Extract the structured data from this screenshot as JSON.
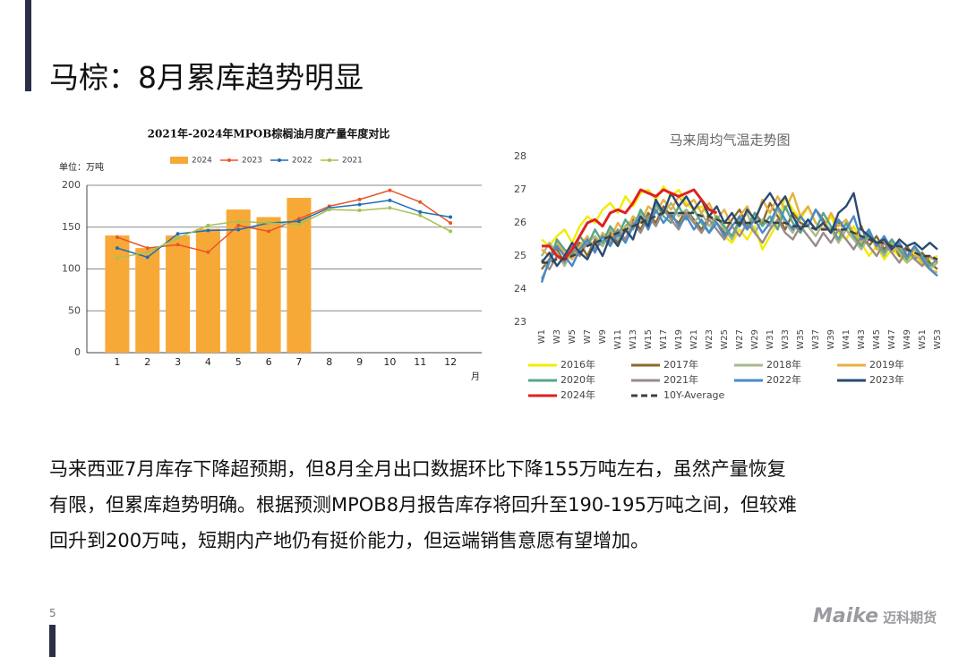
{
  "title": "马棕：8月累库趋势明显",
  "chart_data": [
    {
      "type": "combo",
      "title": "2021年-2024年MPOB棕榈油月度产量年度对比",
      "unit_label": "单位：万吨",
      "x_label": "月",
      "categories": [
        "1",
        "2",
        "3",
        "4",
        "5",
        "6",
        "7",
        "8",
        "9",
        "10",
        "11",
        "12"
      ],
      "series": [
        {
          "name": "2024",
          "type": "bar",
          "color": "#f7a938",
          "values": [
            140,
            125,
            140,
            148,
            171,
            162,
            185,
            null,
            null,
            null,
            null,
            null
          ]
        },
        {
          "name": "2023",
          "type": "line",
          "color": "#e8562a",
          "values": [
            138,
            125,
            129,
            120,
            152,
            145,
            160,
            175,
            183,
            194,
            180,
            155
          ]
        },
        {
          "name": "2022",
          "type": "line",
          "color": "#1f6fb5",
          "values": [
            125,
            114,
            142,
            146,
            147,
            155,
            157,
            173,
            177,
            182,
            168,
            162
          ]
        },
        {
          "name": "2021",
          "type": "line",
          "color": "#a8c050",
          "values": [
            113,
            120,
            137,
            152,
            157,
            155,
            153,
            171,
            170,
            173,
            164,
            145
          ]
        }
      ],
      "ylim": [
        0,
        200
      ],
      "yticks": [
        0,
        50,
        100,
        150,
        200
      ],
      "grid": true
    },
    {
      "type": "line",
      "title": "马来周均气温走势图",
      "categories": [
        "W1",
        null,
        "W3",
        null,
        "W5",
        null,
        "W7",
        null,
        "W9",
        null,
        "W11",
        null,
        "W13",
        null,
        "W15",
        null,
        "W17",
        null,
        "W19",
        null,
        "W21",
        null,
        "W23",
        null,
        "W25",
        null,
        "W27",
        null,
        "W29",
        null,
        "W31",
        null,
        "W33",
        null,
        "W35",
        null,
        "W37",
        null,
        "W39",
        null,
        "W41",
        null,
        "W43",
        null,
        "W45",
        null,
        "W47",
        null,
        "W49",
        null,
        "W51",
        null,
        "W53"
      ],
      "series": [
        {
          "name": "2016年",
          "color": "#f2ec00",
          "dash": false,
          "values": [
            25.5,
            25.3,
            25.6,
            25.8,
            25.4,
            25.9,
            26.2,
            26.0,
            26.4,
            26.6,
            26.3,
            26.8,
            26.5,
            26.9,
            27.0,
            26.7,
            27.1,
            26.8,
            27.0,
            26.6,
            26.4,
            26.5,
            26.2,
            26.0,
            25.6,
            25.4,
            25.8,
            25.5,
            25.9,
            25.2,
            25.6,
            26.0,
            26.8,
            26.4,
            26.1,
            26.5,
            26.0,
            25.8,
            26.2,
            25.7,
            25.5,
            25.9,
            25.4,
            25.0,
            25.3,
            24.9,
            25.2,
            25.0,
            24.8,
            25.1,
            24.7,
            24.9,
            25.0
          ]
        },
        {
          "name": "2017年",
          "color": "#8b6a2a",
          "dash": false,
          "values": [
            24.6,
            24.9,
            25.2,
            24.8,
            25.1,
            25.4,
            25.0,
            25.5,
            25.3,
            25.7,
            25.4,
            25.9,
            26.1,
            25.8,
            26.3,
            26.0,
            26.5,
            26.2,
            26.0,
            26.4,
            26.1,
            25.8,
            26.2,
            26.0,
            25.7,
            26.1,
            26.4,
            25.9,
            26.3,
            26.0,
            26.6,
            26.2,
            25.8,
            26.3,
            26.0,
            25.9,
            26.4,
            26.1,
            25.7,
            26.0,
            25.8,
            25.5,
            25.9,
            25.3,
            25.6,
            25.2,
            25.5,
            25.0,
            25.3,
            24.9,
            25.1,
            24.8,
            24.6
          ]
        },
        {
          "name": "2018年",
          "color": "#a8b88a",
          "dash": false,
          "values": [
            25.0,
            25.4,
            25.1,
            24.7,
            25.2,
            25.0,
            25.4,
            25.6,
            25.3,
            25.8,
            25.5,
            25.9,
            26.0,
            26.3,
            26.1,
            26.5,
            26.3,
            26.6,
            26.2,
            26.4,
            26.0,
            26.3,
            25.9,
            26.2,
            25.8,
            25.5,
            26.0,
            26.3,
            25.7,
            26.1,
            25.9,
            26.4,
            26.0,
            25.7,
            26.2,
            25.9,
            25.6,
            26.0,
            25.8,
            25.4,
            25.8,
            25.5,
            25.2,
            25.6,
            25.3,
            25.0,
            25.4,
            25.1,
            24.8,
            25.0,
            24.9,
            24.6,
            24.8
          ]
        },
        {
          "name": "2019年",
          "color": "#e8b040",
          "dash": false,
          "values": [
            25.2,
            25.0,
            25.4,
            25.1,
            24.9,
            25.3,
            25.6,
            25.2,
            25.7,
            25.5,
            26.0,
            25.7,
            26.2,
            26.0,
            26.5,
            26.3,
            26.7,
            26.4,
            26.8,
            26.5,
            26.7,
            26.3,
            26.6,
            26.1,
            26.4,
            25.9,
            26.2,
            26.5,
            26.0,
            26.7,
            26.3,
            26.8,
            26.4,
            26.9,
            26.2,
            26.5,
            26.0,
            25.8,
            26.3,
            25.9,
            26.1,
            25.7,
            25.4,
            25.8,
            25.2,
            25.5,
            25.1,
            25.3,
            24.9,
            25.2,
            24.8,
            24.6,
            24.5
          ]
        },
        {
          "name": "2020年",
          "color": "#5aa58a",
          "dash": false,
          "values": [
            24.3,
            24.8,
            25.5,
            25.2,
            25.0,
            25.6,
            25.3,
            25.8,
            25.4,
            25.9,
            25.6,
            26.1,
            25.8,
            26.4,
            26.0,
            26.6,
            26.2,
            26.0,
            26.5,
            26.1,
            26.4,
            26.0,
            25.7,
            26.2,
            25.9,
            25.6,
            26.1,
            25.8,
            26.3,
            25.9,
            26.2,
            25.8,
            26.5,
            26.0,
            25.7,
            26.1,
            25.8,
            26.3,
            25.9,
            25.5,
            26.0,
            25.6,
            25.3,
            25.7,
            25.4,
            25.1,
            25.5,
            25.2,
            24.9,
            25.3,
            25.0,
            24.7,
            24.9
          ]
        },
        {
          "name": "2021年",
          "color": "#9a8a8a",
          "dash": false,
          "values": [
            24.9,
            24.6,
            25.0,
            24.8,
            25.3,
            25.0,
            25.5,
            25.2,
            25.6,
            25.4,
            25.8,
            25.5,
            26.0,
            25.7,
            26.2,
            25.9,
            26.4,
            26.1,
            25.8,
            26.3,
            26.0,
            25.7,
            26.1,
            25.8,
            25.5,
            25.9,
            25.6,
            26.0,
            25.7,
            25.4,
            25.8,
            26.1,
            25.7,
            25.5,
            25.9,
            25.6,
            25.3,
            25.7,
            25.4,
            25.8,
            25.5,
            25.2,
            25.6,
            25.3,
            25.0,
            25.4,
            25.1,
            24.8,
            25.2,
            24.9,
            24.7,
            25.0,
            24.8
          ]
        },
        {
          "name": "2022年",
          "color": "#4a8ac8",
          "dash": false,
          "values": [
            24.2,
            24.9,
            25.3,
            25.0,
            24.7,
            25.2,
            25.5,
            25.1,
            25.6,
            25.3,
            25.7,
            25.4,
            25.9,
            26.2,
            25.8,
            26.4,
            26.0,
            26.3,
            25.9,
            26.2,
            25.8,
            26.1,
            25.7,
            26.0,
            25.6,
            25.9,
            26.2,
            25.8,
            26.1,
            25.7,
            26.0,
            26.5,
            26.1,
            25.8,
            26.2,
            25.9,
            26.4,
            26.0,
            25.7,
            26.1,
            25.8,
            26.2,
            25.5,
            25.8,
            25.3,
            25.6,
            25.2,
            25.4,
            25.0,
            25.3,
            24.9,
            24.6,
            24.4
          ]
        },
        {
          "name": "2023年",
          "color": "#2a4a70",
          "dash": false,
          "values": [
            24.8,
            25.1,
            24.7,
            25.0,
            25.4,
            25.1,
            24.9,
            25.4,
            25.0,
            25.6,
            25.3,
            25.8,
            25.5,
            26.2,
            25.9,
            26.7,
            26.3,
            26.9,
            26.5,
            26.8,
            26.4,
            26.7,
            26.2,
            26.5,
            26.0,
            26.3,
            25.9,
            26.4,
            26.1,
            26.6,
            26.9,
            26.5,
            26.8,
            26.2,
            25.8,
            26.1,
            25.8,
            26.0,
            25.7,
            26.3,
            26.5,
            26.9,
            25.8,
            25.6,
            25.4,
            25.5,
            25.2,
            25.5,
            25.3,
            25.4,
            25.2,
            25.4,
            25.2
          ]
        },
        {
          "name": "2024年",
          "color": "#e02020",
          "dash": false,
          "values": [
            25.3,
            25.3,
            25.0,
            24.9,
            25.2,
            25.6,
            26.0,
            26.1,
            25.9,
            26.3,
            26.4,
            26.3,
            26.6,
            27.0,
            26.9,
            26.8,
            27.0,
            26.9,
            26.8,
            26.9,
            27.0,
            26.7,
            26.4,
            26.3,
            null,
            null,
            null,
            null,
            null,
            null,
            null,
            null,
            null,
            null,
            null,
            null,
            null,
            null,
            null,
            null,
            null,
            null,
            null,
            null,
            null,
            null,
            null,
            null,
            null,
            null,
            null,
            null,
            null
          ]
        },
        {
          "name": "10Y-Average",
          "color": "#404040",
          "dash": true,
          "values": [
            24.8,
            24.8,
            24.9,
            24.9,
            25.0,
            25.1,
            25.3,
            25.4,
            25.5,
            25.6,
            25.7,
            25.8,
            25.9,
            26.0,
            26.1,
            26.2,
            26.3,
            26.3,
            26.3,
            26.3,
            26.3,
            26.2,
            26.2,
            26.1,
            26.0,
            26.0,
            26.0,
            26.0,
            26.0,
            26.1,
            26.0,
            26.0,
            26.0,
            25.9,
            25.9,
            25.9,
            25.8,
            25.8,
            25.8,
            25.8,
            25.8,
            25.7,
            25.6,
            25.5,
            25.4,
            25.4,
            25.3,
            25.3,
            25.2,
            25.1,
            25.0,
            25.0,
            24.9
          ]
        }
      ],
      "ylim": [
        23,
        28
      ],
      "yticks": [
        23,
        24,
        25,
        26,
        27,
        28
      ],
      "grid": false
    }
  ],
  "body": [
    "马来西亚7月库存下降超预期，但8月全月出口数据环比下降155万吨左右，虽然产量恢复",
    "有限，但累库趋势明确。根据预测MPOB8月报告库存将回升至190-195万吨之间，但较难",
    "回升到200万吨，短期内产地仍有挺价能力，但运端销售意愿有望增加。"
  ],
  "page_number": "5",
  "logo": {
    "brand": "Maike",
    "name": "迈科期货"
  }
}
